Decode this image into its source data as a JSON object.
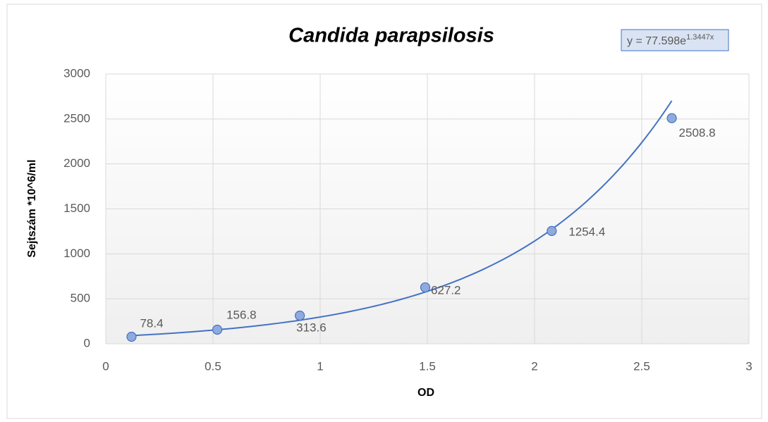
{
  "chart_data": {
    "type": "scatter",
    "title": "Candida parapsilosis",
    "xlabel": "OD",
    "ylabel": "Sejtszám *10^6/ml",
    "x": [
      0.12,
      0.52,
      0.905,
      1.49,
      2.08,
      2.64
    ],
    "series": [
      {
        "name": "Sejtszám",
        "color": "#8faadc",
        "values": [
          78.4,
          156.8,
          313.6,
          627.2,
          1254.4,
          2508.8
        ]
      }
    ],
    "trendline": {
      "type": "exponential",
      "a": 77.598,
      "b": 1.3447,
      "label": "y = 77.598e",
      "label_exponent": "1.3447x",
      "color": "#4472c4"
    },
    "xlim": [
      0,
      3
    ],
    "xticks": [
      0,
      0.5,
      1,
      1.5,
      2,
      2.5,
      3
    ],
    "ylim": [
      0,
      3000
    ],
    "yticks": [
      0,
      500,
      1000,
      1500,
      2000,
      2500,
      3000
    ],
    "grid": true
  }
}
